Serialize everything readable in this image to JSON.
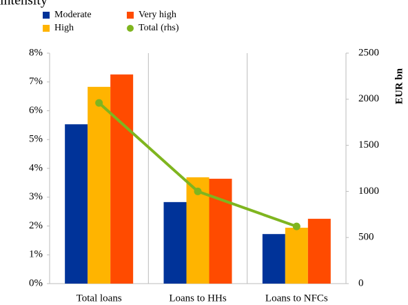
{
  "chart_data": {
    "type": "bar",
    "title": "intensity",
    "categories": [
      "Total loans",
      "Loans to HHs",
      "Loans to NFCs"
    ],
    "series": [
      {
        "name": "Moderate",
        "color": "#003399",
        "values": [
          5.53,
          2.83,
          1.72
        ]
      },
      {
        "name": "High",
        "color": "#ffb400",
        "values": [
          6.83,
          3.69,
          1.94
        ]
      },
      {
        "name": "Very high",
        "color": "#ff4b00",
        "values": [
          7.26,
          3.64,
          2.25
        ]
      },
      {
        "name": "Total (rhs)",
        "color": "#7fb51f",
        "type": "line",
        "axis": "y2",
        "values": [
          1960,
          1000,
          620
        ]
      }
    ],
    "ylim": [
      0,
      8
    ],
    "yticks": [
      {
        "value": 0,
        "label": "0%"
      },
      {
        "value": 1,
        "label": "1%"
      },
      {
        "value": 2,
        "label": "2%"
      },
      {
        "value": 3,
        "label": "3%"
      },
      {
        "value": 4,
        "label": "4%"
      },
      {
        "value": 5,
        "label": "5%"
      },
      {
        "value": 6,
        "label": "6%"
      },
      {
        "value": 7,
        "label": "7%"
      },
      {
        "value": 8,
        "label": "8%"
      }
    ],
    "y2lim": [
      0,
      2500
    ],
    "y2ticks": [
      0,
      500,
      1000,
      1500,
      2000,
      2500
    ],
    "y2label": "EUR bn",
    "legend": "top"
  }
}
